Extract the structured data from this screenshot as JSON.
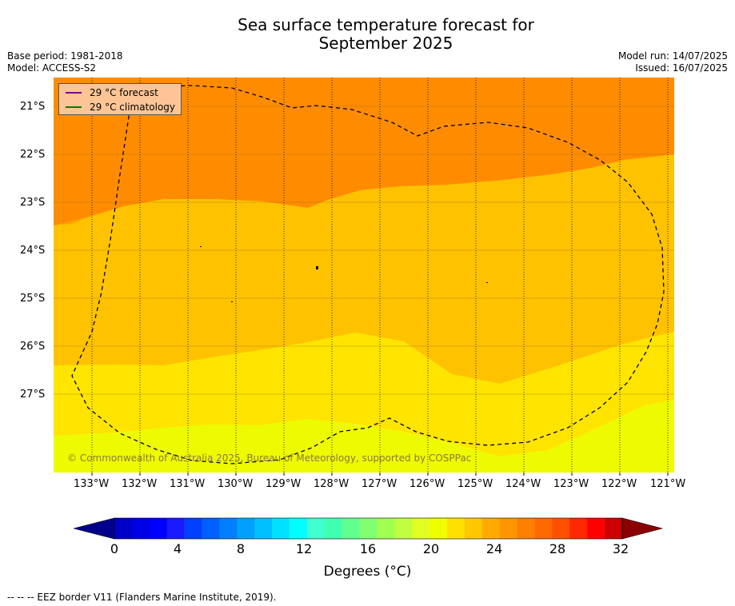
{
  "title_line1": "Sea surface temperature forecast for",
  "title_line2": "September 2025",
  "base_period": "Base period: 1981-2018",
  "model": "Model: ACCESS-S2",
  "model_run": "Model run: 14/07/2025",
  "issued": "Issued: 16/07/2025",
  "legend": [
    {
      "label": "29 °C  forecast",
      "color": "#800080"
    },
    {
      "label": "29 °C  climatology",
      "color": "#008000"
    }
  ],
  "copyright": "© Commonwealth of Australia 2025, Bureau of Meteorology, supported by COSPPac",
  "lat_labels": [
    "21°S",
    "22°S",
    "23°S",
    "24°S",
    "25°S",
    "26°S",
    "27°S"
  ],
  "lon_labels": [
    "133°W",
    "132°W",
    "131°W",
    "130°W",
    "129°W",
    "128°W",
    "127°W",
    "126°W",
    "125°W",
    "124°W",
    "123°W",
    "122°W",
    "121°W"
  ],
  "colorbar": {
    "ticks": [
      "0",
      "4",
      "8",
      "12",
      "16",
      "20",
      "24",
      "28",
      "32"
    ],
    "colors": [
      "#00008b",
      "#0000c8",
      "#0000e6",
      "#0000ff",
      "#1a1aff",
      "#0040ff",
      "#0060ff",
      "#0080ff",
      "#00a0ff",
      "#00c0ff",
      "#00e0ff",
      "#00ffff",
      "#40ffd0",
      "#40ffb0",
      "#60ff90",
      "#80ff70",
      "#a0ff50",
      "#c0ff40",
      "#e0ff20",
      "#f0ff00",
      "#ffe000",
      "#ffc800",
      "#ffaa00",
      "#ff9500",
      "#ff8000",
      "#ff6a00",
      "#ff5000",
      "#ff2800",
      "#ff0000",
      "#cc0000",
      "#8b0000"
    ],
    "title": "Degrees (°C)"
  },
  "footnote": "--  --  -- EEZ border V11 (Flanders Marine Institute, 2019).",
  "colors": {
    "band_28_29": "#ff8c00",
    "band_27_28": "#ffa500",
    "band_26_27": "#ffc200",
    "band_25_26": "#ffe400",
    "band_24_25": "#eefb00"
  }
}
